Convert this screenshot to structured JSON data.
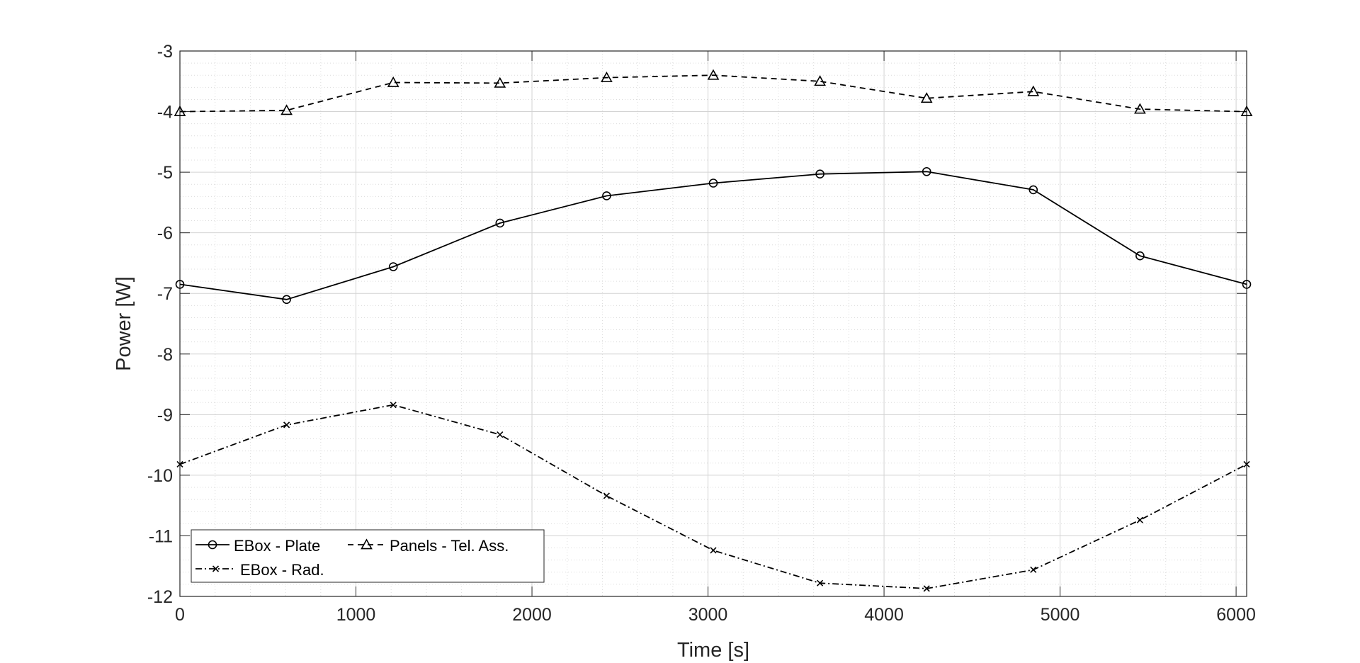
{
  "chart_data": {
    "type": "line",
    "title": "",
    "xlabel": "Time [s]",
    "ylabel": "Power [W]",
    "xlim": [
      0,
      6060
    ],
    "ylim": [
      -12,
      -3
    ],
    "xticks": [
      0,
      1000,
      2000,
      3000,
      4000,
      5000,
      6000
    ],
    "yticks": [
      -3,
      -4,
      -5,
      -6,
      -7,
      -8,
      -9,
      -10,
      -11,
      -12
    ],
    "xtick_labels": [
      "0",
      "1000",
      "2000",
      "3000",
      "4000",
      "5000",
      "6000"
    ],
    "ytick_labels": [
      "-3",
      "-4",
      "-5",
      "-6",
      "-7",
      "-8",
      "-9",
      "-10",
      "-11",
      "-12"
    ],
    "grid": true,
    "minor_grid": true,
    "legend_position": "bottom-left",
    "x": [
      0,
      606,
      1212,
      1818,
      2424,
      3030,
      3636,
      4242,
      4848,
      5454,
      6060
    ],
    "series": [
      {
        "name": "EBox - Plate",
        "marker": "circle",
        "linestyle": "solid",
        "color": "#000000",
        "values": [
          -6.85,
          -7.1,
          -6.56,
          -5.84,
          -5.39,
          -5.18,
          -5.03,
          -4.99,
          -5.29,
          -6.38,
          -6.85
        ]
      },
      {
        "name": "Panels - Tel. Ass.",
        "marker": "triangle",
        "linestyle": "dashed",
        "color": "#000000",
        "values": [
          -4.0,
          -3.98,
          -3.52,
          -3.53,
          -3.44,
          -3.4,
          -3.5,
          -3.78,
          -3.67,
          -3.96,
          -4.0
        ]
      },
      {
        "name": "EBox - Rad.",
        "marker": "x",
        "linestyle": "dashdot",
        "color": "#000000",
        "values": [
          -9.82,
          -9.17,
          -8.84,
          -9.33,
          -10.34,
          -11.24,
          -11.78,
          -11.87,
          -11.56,
          -10.74,
          -9.82
        ]
      }
    ]
  }
}
